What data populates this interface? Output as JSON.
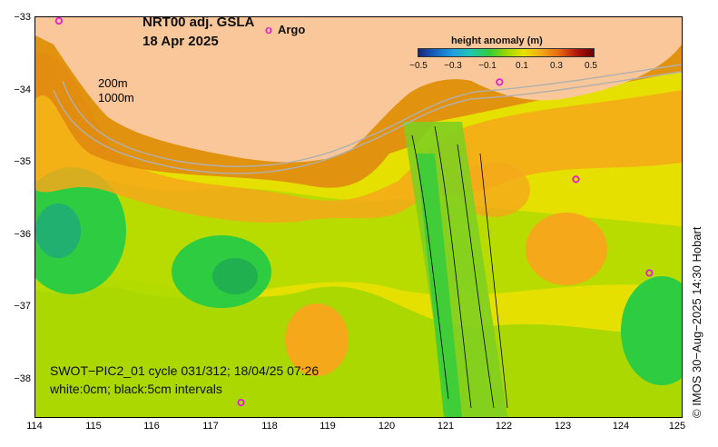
{
  "title": {
    "product": "NRT00 adj. GSLA",
    "date": "18 Apr 2025"
  },
  "legend": {
    "argo_symbol": "o",
    "argo_label": "Argo",
    "argo_color": "#e020d0"
  },
  "contours": {
    "label_200": "200m",
    "label_1000": "1000m"
  },
  "colorbar": {
    "title": "height anomaly (m)",
    "ticks": [
      "−0.5",
      "−0.3",
      "−0.1",
      "0.1",
      "0.3",
      "0.5"
    ],
    "colors": [
      "#1a237e",
      "#1565c0",
      "#1fa0e0",
      "#21c8b0",
      "#2ecc40",
      "#9bd600",
      "#e8e200",
      "#f4a81a",
      "#e66b10",
      "#b5170b",
      "#6a0000"
    ]
  },
  "axes": {
    "y_ticks": [
      "−33",
      "−34",
      "−35",
      "−36",
      "−37",
      "−38"
    ],
    "x_ticks": [
      "114",
      "115",
      "116",
      "117",
      "118",
      "119",
      "120",
      "121",
      "122",
      "123",
      "124",
      "125"
    ]
  },
  "swot": {
    "line1": "SWOT−PIC2_01 cycle 031/312; 18/04/25 07:26",
    "line2": "white:0cm; black:5cm intervals"
  },
  "credit": "© IMOS 30−Aug−2025 14:30 Hobart",
  "argo_floats": [
    {
      "lon": 114.4,
      "lat": -33.0
    },
    {
      "lon": 121.9,
      "lat": -33.85
    },
    {
      "lon": 123.2,
      "lat": -35.2
    },
    {
      "lon": 124.45,
      "lat": -36.5
    },
    {
      "lon": 117.5,
      "lat": -38.3
    }
  ],
  "colors": {
    "land": "#f9c79a",
    "ocean_base": "#e6e000"
  }
}
